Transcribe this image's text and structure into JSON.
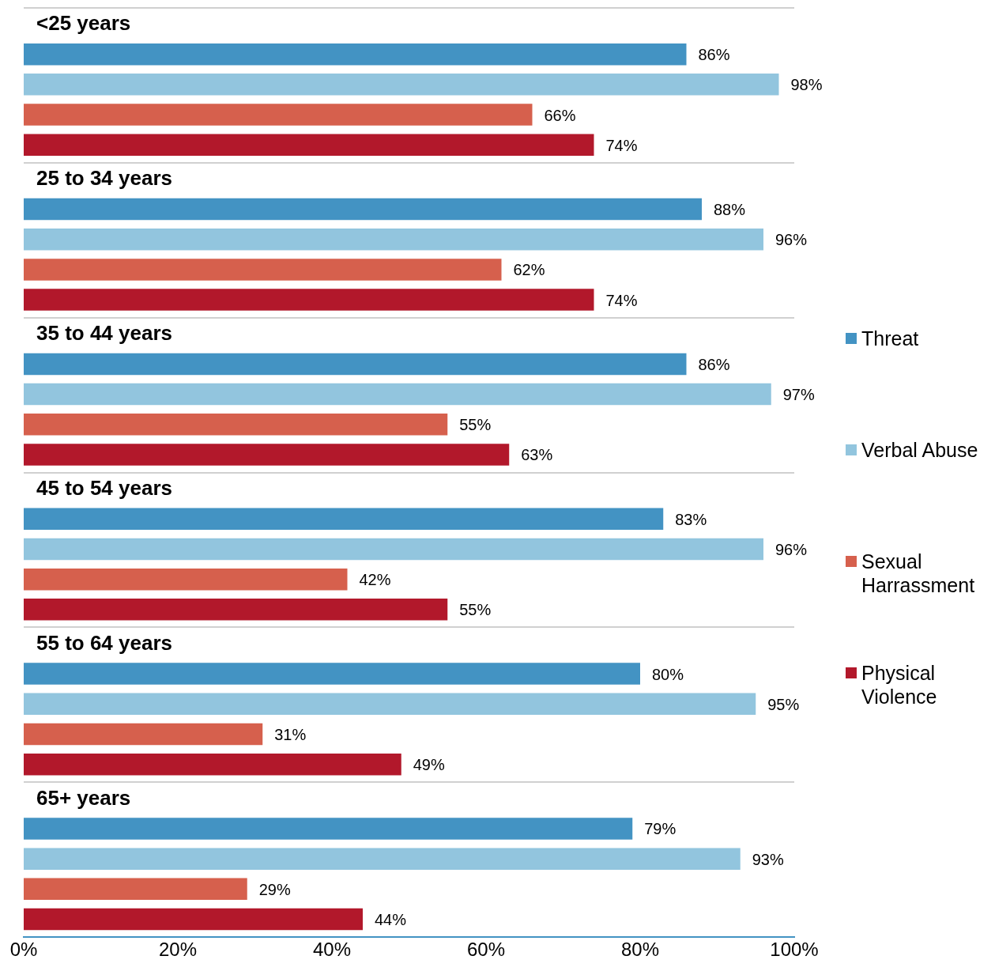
{
  "chart_data": {
    "type": "bar",
    "orientation": "horizontal",
    "categories": [
      "<25 years",
      "25 to 34 years",
      "35 to 44 years",
      "45 to 54 years",
      "55 to 64 years",
      "65+ years"
    ],
    "series": [
      {
        "name": "Threat",
        "color": "#4393c3",
        "values": [
          86,
          88,
          86,
          83,
          80,
          79
        ]
      },
      {
        "name": "Verbal Abuse",
        "color": "#92c5de",
        "values": [
          98,
          96,
          97,
          96,
          95,
          93
        ]
      },
      {
        "name": "Sexual Harrassment",
        "color": "#d6604d",
        "values": [
          66,
          62,
          55,
          42,
          31,
          29
        ]
      },
      {
        "name": "Physical Violence",
        "color": "#b2182b",
        "values": [
          74,
          74,
          63,
          55,
          49,
          44
        ]
      }
    ],
    "xlim": [
      0,
      100
    ],
    "xticks": [
      {
        "value": 0,
        "label": "0%"
      },
      {
        "value": 20,
        "label": "20%"
      },
      {
        "value": 40,
        "label": "40%"
      },
      {
        "value": 60,
        "label": "60%"
      },
      {
        "value": 80,
        "label": "80%"
      },
      {
        "value": 100,
        "label": "100%"
      }
    ],
    "value_labels": [
      [
        "86%",
        "88%",
        "86%",
        "83%",
        "80%",
        "79%"
      ],
      [
        "98%",
        "96%",
        "97%",
        "96%",
        "95%",
        "93%"
      ],
      [
        "66%",
        "62%",
        "55%",
        "42%",
        "31%",
        "29%"
      ],
      [
        "74%",
        "74%",
        "63%",
        "55%",
        "49%",
        "44%"
      ]
    ],
    "grid": "y",
    "legend": "right"
  }
}
